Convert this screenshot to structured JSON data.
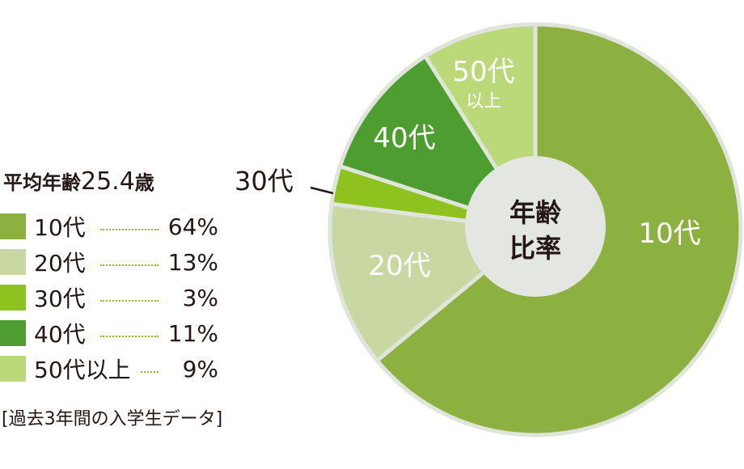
{
  "chart_data": {
    "type": "pie",
    "style": "donut",
    "center_label": [
      "年齢",
      "比率"
    ],
    "categories": [
      "10代",
      "20代",
      "30代",
      "40代",
      "50代以上"
    ],
    "slice_labels": [
      "10代",
      "20代",
      "30代",
      "40代",
      "50代\n以上"
    ],
    "values": [
      64,
      13,
      3,
      11,
      9
    ],
    "value_labels": [
      "64%",
      "13%",
      "3%",
      "11%",
      "9%"
    ],
    "colors": [
      "#8cb141",
      "#c9d8a2",
      "#8dc21f",
      "#4e9d30",
      "#bcd97a"
    ],
    "separator_color": "#dfe5da",
    "center_color": "#e3e6e1",
    "legend": "left",
    "start": "top, clockwise"
  },
  "summary": {
    "prefix": "平均年齢",
    "value": "25.4",
    "unit": "歳"
  },
  "outside_label_30": "30代",
  "note": "[過去3年間の入学生データ]"
}
